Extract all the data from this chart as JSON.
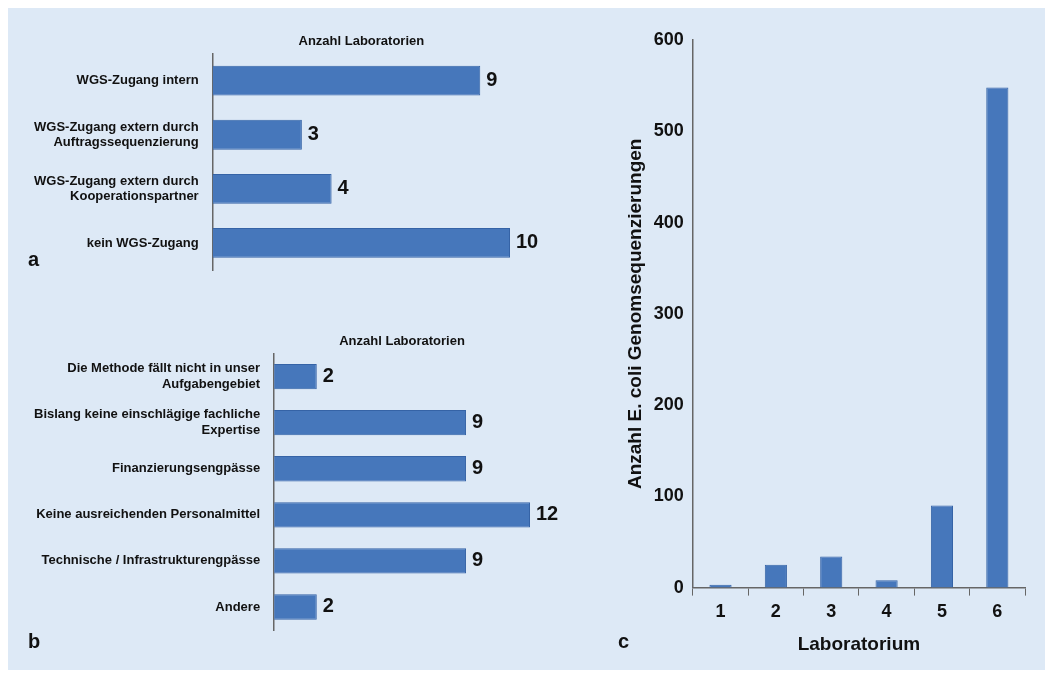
{
  "chart_data": [
    {
      "type": "bar",
      "orientation": "horizontal",
      "xlabel": "Anzahl Laboratorien",
      "categories": [
        "WGS-Zugang intern",
        "WGS-Zugang extern durch Auftragssequenzierung",
        "WGS-Zugang extern durch Kooperationspartner",
        "kein WGS-Zugang"
      ],
      "values": [
        9,
        3,
        4,
        10
      ],
      "color": "#4677bb",
      "data_labels": true,
      "grid": false,
      "legend": false,
      "tick_labels": "y",
      "annotations": [
        "a"
      ]
    },
    {
      "type": "bar",
      "orientation": "horizontal",
      "xlabel": "Anzahl Laboratorien",
      "categories": [
        "Die Methode fällt nicht in unser Aufgabengebiet",
        "Bislang keine einschlägige fachliche Expertise",
        "Finanzierungsengpässe",
        "Keine ausreichenden Personalmittel",
        "Technische / Infrastrukturengpässe",
        "Andere"
      ],
      "values": [
        2,
        9,
        9,
        12,
        9,
        2
      ],
      "color": "#4677bb",
      "data_labels": true,
      "grid": false,
      "legend": false,
      "tick_labels": "y",
      "annotations": [
        "b"
      ]
    },
    {
      "type": "bar",
      "xlabel": "Laboratorium",
      "ylabel": "Anzahl E. coli Genomsequenzierungen",
      "categories": [
        "1",
        "2",
        "3",
        "4",
        "5",
        "6"
      ],
      "values": [
        3,
        25,
        34,
        8,
        90,
        548
      ],
      "color": "#4677bb",
      "ylim": [
        0,
        600
      ],
      "yticks": [
        0,
        100,
        200,
        300,
        400,
        500,
        600
      ],
      "grid": false,
      "legend": false,
      "annotations": [
        "c"
      ]
    }
  ]
}
